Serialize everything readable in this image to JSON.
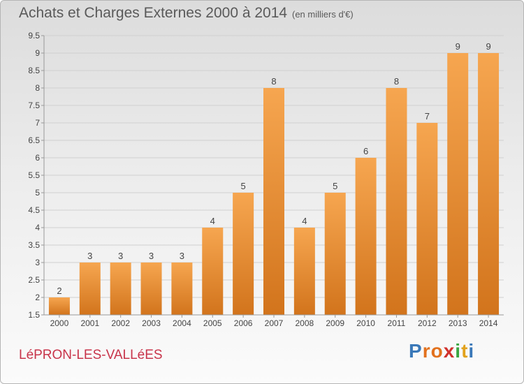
{
  "header": {
    "title": "Achats et Charges Externes 2000 à 2014",
    "subtitle": "(en milliers d'€)"
  },
  "footer": {
    "commune": "LéPRON-LES-VALLéES",
    "logo": [
      "P",
      "r",
      "o",
      "x",
      "i",
      "t",
      "i"
    ],
    "logo_colors": [
      "#3a78b8",
      "#e2711d",
      "#e2711d",
      "#d0312d",
      "#3aa540",
      "#e2a21d",
      "#3a78b8"
    ]
  },
  "colors": {
    "bar_light": "#f6a650",
    "bar_dark": "#d2741c",
    "grid": "#d0d0d0",
    "axis": "#999999"
  },
  "chart_data": {
    "type": "bar",
    "title": "Achats et Charges Externes 2000 à 2014",
    "subtitle": "(en milliers d'€)",
    "categories": [
      "2000",
      "2001",
      "2002",
      "2003",
      "2004",
      "2005",
      "2006",
      "2007",
      "2008",
      "2009",
      "2010",
      "2011",
      "2012",
      "2013",
      "2014"
    ],
    "values": [
      2,
      3,
      3,
      3,
      3,
      4,
      5,
      8,
      4,
      5,
      6,
      8,
      7,
      9,
      9
    ],
    "ylim": [
      1.5,
      9.5
    ],
    "yticks": [
      "1.5",
      "2",
      "2.5",
      "3",
      "3.5",
      "4",
      "4.5",
      "5",
      "5.5",
      "6",
      "6.5",
      "7",
      "7.5",
      "8",
      "8.5",
      "9",
      "9.5"
    ],
    "grid": true,
    "xlabel": "",
    "ylabel": ""
  }
}
